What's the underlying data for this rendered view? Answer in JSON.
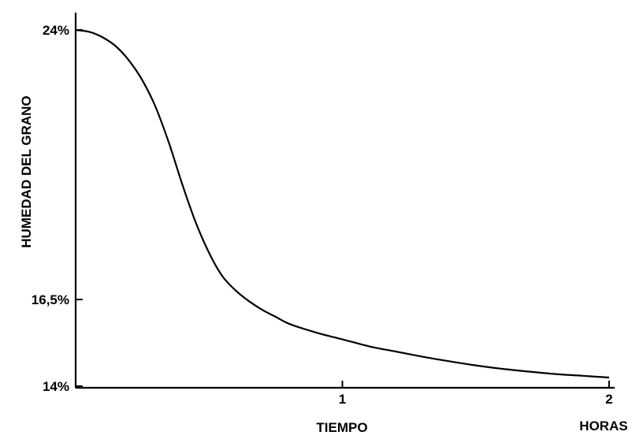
{
  "chart_data": {
    "type": "line",
    "title": "",
    "xlabel": "TIEMPO",
    "xunit": "HORAS",
    "ylabel": "HUMEDAD DEL GRANO",
    "xlim": [
      0,
      2
    ],
    "ylim": [
      14,
      24
    ],
    "x_ticks": [
      1,
      2
    ],
    "x_tick_labels": [
      "1",
      "2"
    ],
    "y_ticks": [
      14,
      16.5,
      24
    ],
    "y_tick_labels": [
      "14%",
      "16,5%",
      "24%"
    ],
    "grid": false,
    "legend": "none",
    "series": [
      {
        "x": [
          0,
          0.05,
          0.1,
          0.15,
          0.2,
          0.25,
          0.3,
          0.35,
          0.4,
          0.45,
          0.5,
          0.55,
          0.6,
          0.65,
          0.7,
          0.75,
          0.8,
          0.9,
          1.0,
          1.1,
          1.2,
          1.3,
          1.4,
          1.5,
          1.6,
          1.7,
          1.8,
          1.9,
          2.0
        ],
        "y": [
          24.0,
          23.95,
          23.8,
          23.55,
          23.15,
          22.6,
          21.85,
          20.85,
          19.7,
          18.65,
          17.8,
          17.15,
          16.75,
          16.45,
          16.2,
          16.0,
          15.8,
          15.55,
          15.35,
          15.15,
          15.0,
          14.85,
          14.72,
          14.6,
          14.5,
          14.42,
          14.35,
          14.3,
          14.25
        ]
      }
    ],
    "color": "#000000"
  }
}
